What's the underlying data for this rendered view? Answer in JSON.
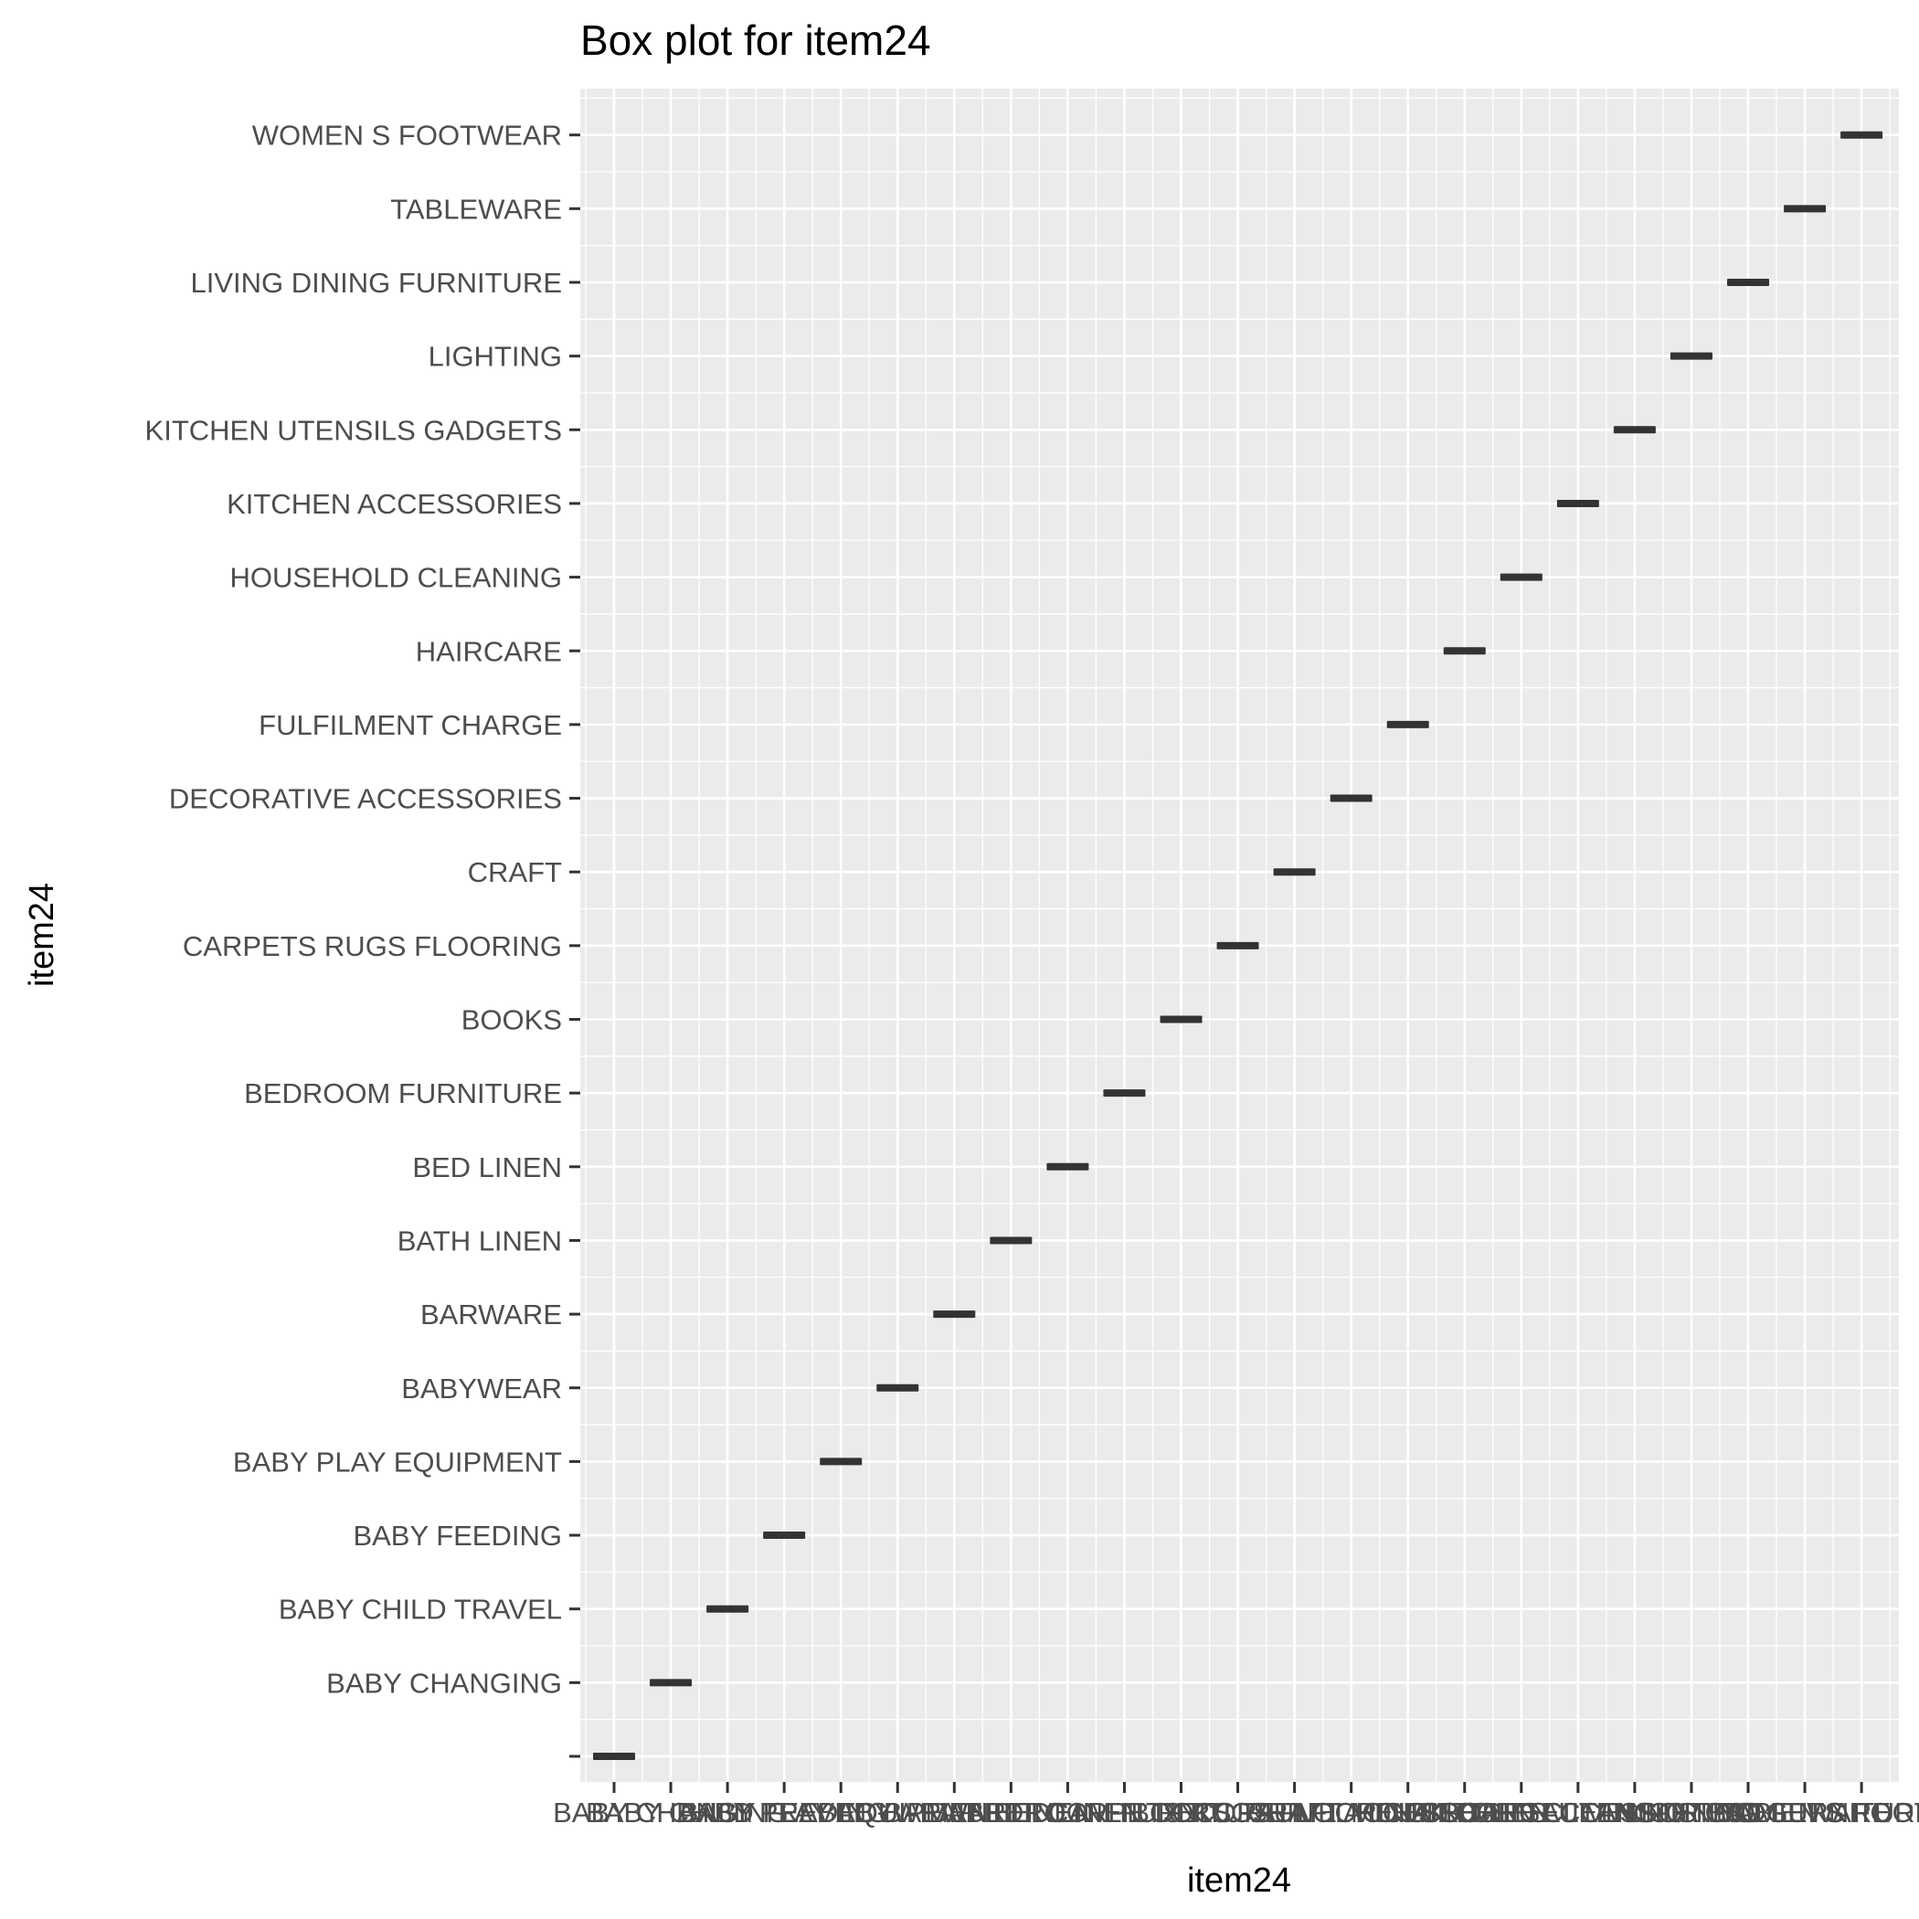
{
  "chart_data": {
    "type": "box",
    "title": "Box plot for item24",
    "xlabel": "item24",
    "ylabel": "item24",
    "categories": [
      "",
      "BABY CHANGING",
      "BABY CHILD TRAVEL",
      "BABY FEEDING",
      "BABY PLAY EQUIPMENT",
      "BABYWEAR",
      "BARWARE",
      "BATH LINEN",
      "BED LINEN",
      "BEDROOM FURNITURE",
      "BOOKS",
      "CARPETS RUGS FLOORING",
      "CRAFT",
      "DECORATIVE ACCESSORIES",
      "FULFILMENT CHARGE",
      "HAIRCARE",
      "HOUSEHOLD CLEANING",
      "KITCHEN ACCESSORIES",
      "KITCHEN UTENSILS GADGETS",
      "LIGHTING",
      "LIVING DINING FURNITURE",
      "TABLEWARE",
      "WOMEN S FOOTWEAR"
    ],
    "boxes": [
      {
        "x": "",
        "y": ""
      },
      {
        "x": "BABY CHANGING",
        "y": "BABY CHANGING"
      },
      {
        "x": "BABY CHILD TRAVEL",
        "y": "BABY CHILD TRAVEL"
      },
      {
        "x": "BABY FEEDING",
        "y": "BABY FEEDING"
      },
      {
        "x": "BABY PLAY EQUIPMENT",
        "y": "BABY PLAY EQUIPMENT"
      },
      {
        "x": "BABYWEAR",
        "y": "BABYWEAR"
      },
      {
        "x": "BARWARE",
        "y": "BARWARE"
      },
      {
        "x": "BATH LINEN",
        "y": "BATH LINEN"
      },
      {
        "x": "BED LINEN",
        "y": "BED LINEN"
      },
      {
        "x": "BEDROOM FURNITURE",
        "y": "BEDROOM FURNITURE"
      },
      {
        "x": "BOOKS",
        "y": "BOOKS"
      },
      {
        "x": "CARPETS RUGS FLOORING",
        "y": "CARPETS RUGS FLOORING"
      },
      {
        "x": "CRAFT",
        "y": "CRAFT"
      },
      {
        "x": "DECORATIVE ACCESSORIES",
        "y": "DECORATIVE ACCESSORIES"
      },
      {
        "x": "FULFILMENT CHARGE",
        "y": "FULFILMENT CHARGE"
      },
      {
        "x": "HAIRCARE",
        "y": "HAIRCARE"
      },
      {
        "x": "HOUSEHOLD CLEANING",
        "y": "HOUSEHOLD CLEANING"
      },
      {
        "x": "KITCHEN ACCESSORIES",
        "y": "KITCHEN ACCESSORIES"
      },
      {
        "x": "KITCHEN UTENSILS GADGETS",
        "y": "KITCHEN UTENSILS GADGETS"
      },
      {
        "x": "LIGHTING",
        "y": "LIGHTING"
      },
      {
        "x": "LIVING DINING FURNITURE",
        "y": "LIVING DINING FURNITURE"
      },
      {
        "x": "TABLEWARE",
        "y": "TABLEWARE"
      },
      {
        "x": "WOMEN S FOOTWEAR",
        "y": "WOMEN S FOOTWEAR"
      }
    ],
    "grid": true,
    "legend": "none",
    "colors": {
      "panel": "#ebebeb",
      "grid": "#ffffff",
      "box": "#333333",
      "tick": "#333333",
      "tick_label": "#4d4d4d"
    }
  }
}
